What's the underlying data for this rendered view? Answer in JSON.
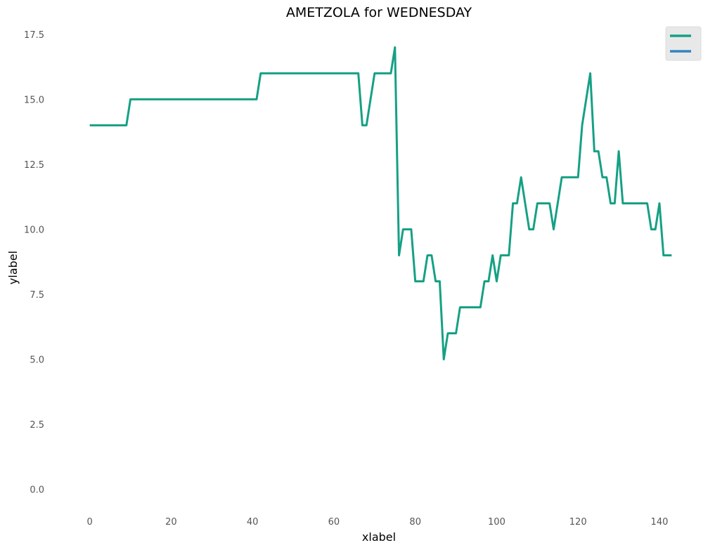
{
  "chart_data": {
    "type": "line",
    "title": "AMETZOLA for WEDNESDAY",
    "xlabel": "xlabel",
    "ylabel": "ylabel",
    "xlim": [
      -7.2,
      150.2
    ],
    "ylim": [
      -0.9,
      17.9
    ],
    "xticks": [
      0,
      20,
      40,
      60,
      80,
      100,
      120,
      140
    ],
    "yticks": [
      0.0,
      2.5,
      5.0,
      7.5,
      10.0,
      12.5,
      15.0,
      17.5
    ],
    "ytick_labels": [
      "0.0",
      "2.5",
      "5.0",
      "7.5",
      "10.0",
      "12.5",
      "15.0",
      "17.5"
    ],
    "grid": false,
    "legend": {
      "placement": "top-right",
      "entries": [
        {
          "name": "",
          "color": "#16a085"
        },
        {
          "name": "",
          "color": "#2e86c1"
        }
      ]
    },
    "series": [
      {
        "color": "#16a085",
        "points": [
          [
            0,
            14
          ],
          [
            9,
            14
          ],
          [
            10,
            15
          ],
          [
            41,
            15
          ],
          [
            42,
            16
          ],
          [
            66,
            16
          ],
          [
            67,
            14
          ],
          [
            68,
            14
          ],
          [
            70,
            16
          ],
          [
            74,
            16
          ],
          [
            75,
            17
          ],
          [
            76,
            9
          ],
          [
            77,
            10
          ],
          [
            79,
            10
          ],
          [
            80,
            8
          ],
          [
            82,
            8
          ],
          [
            83,
            9
          ],
          [
            84,
            9
          ],
          [
            85,
            8
          ],
          [
            86,
            8
          ],
          [
            87,
            5
          ],
          [
            88,
            6
          ],
          [
            90,
            6
          ],
          [
            91,
            7
          ],
          [
            96,
            7
          ],
          [
            97,
            8
          ],
          [
            98,
            8
          ],
          [
            99,
            9
          ],
          [
            100,
            8
          ],
          [
            101,
            9
          ],
          [
            103,
            9
          ],
          [
            104,
            11
          ],
          [
            105,
            11
          ],
          [
            106,
            12
          ],
          [
            108,
            10
          ],
          [
            109,
            10
          ],
          [
            110,
            11
          ],
          [
            113,
            11
          ],
          [
            114,
            10
          ],
          [
            116,
            12
          ],
          [
            120,
            12
          ],
          [
            121,
            14
          ],
          [
            123,
            16
          ],
          [
            124,
            13
          ],
          [
            125,
            13
          ],
          [
            126,
            12
          ],
          [
            127,
            12
          ],
          [
            128,
            11
          ],
          [
            129,
            11
          ],
          [
            130,
            13
          ],
          [
            131,
            11
          ],
          [
            137,
            11
          ],
          [
            138,
            10
          ],
          [
            139,
            10
          ],
          [
            140,
            11
          ],
          [
            141,
            9
          ],
          [
            143,
            9
          ]
        ]
      },
      {
        "color": "#2e86c1",
        "points": []
      }
    ]
  }
}
